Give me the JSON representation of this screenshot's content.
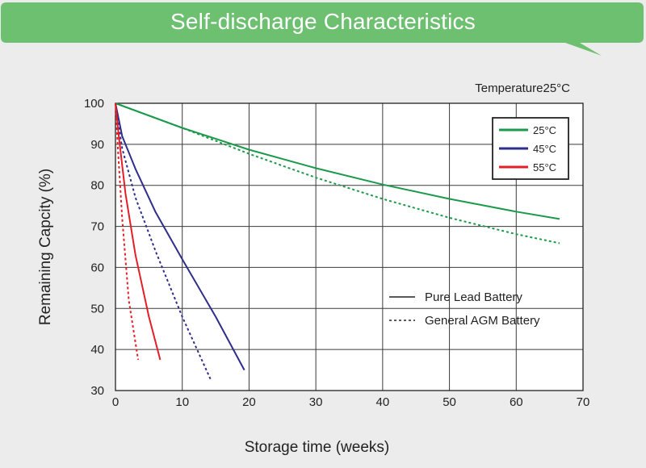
{
  "header": {
    "title": "Self-discharge Characteristics"
  },
  "chart_data": {
    "type": "line",
    "title": "Self-discharge Characteristics",
    "note": "Temperature25°C",
    "xlabel": "Storage time (weeks)",
    "ylabel": "Remaining Capcity (%)",
    "xlim": [
      0,
      70
    ],
    "ylim": [
      30,
      100
    ],
    "xticks": [
      0,
      10,
      20,
      30,
      40,
      50,
      60,
      70
    ],
    "yticks": [
      30,
      40,
      50,
      60,
      70,
      80,
      90,
      100
    ],
    "grid": true,
    "legend_placement": "top-right",
    "colors": {
      "25C": "#1a9a4a",
      "45C": "#2e2e8c",
      "55C": "#e41e26",
      "banner": "#6cc070"
    },
    "legend": [
      {
        "label": "25°C",
        "color": "#1a9a4a"
      },
      {
        "label": "45°C",
        "color": "#2e2e8c"
      },
      {
        "label": "55°C",
        "color": "#e41e26"
      }
    ],
    "battery_types": [
      {
        "label": "Pure Lead Battery",
        "style": "solid"
      },
      {
        "label": "General AGM Battery",
        "style": "dashed"
      }
    ],
    "series": [
      {
        "temperature": "25°C",
        "battery": "Pure Lead Battery",
        "color": "#1a9a4a",
        "style": "solid",
        "x": [
          0,
          10,
          20,
          30,
          40,
          50,
          60,
          66.5
        ],
        "y": [
          100,
          94,
          88.7,
          84.2,
          80.2,
          76.7,
          73.6,
          71.8
        ]
      },
      {
        "temperature": "25°C",
        "battery": "General AGM Battery",
        "color": "#1a9a4a",
        "style": "dashed",
        "x": [
          0,
          10,
          20,
          30,
          40,
          50,
          60,
          66.5
        ],
        "y": [
          100,
          94,
          87.7,
          81.9,
          76.7,
          72.1,
          68.1,
          65.9
        ]
      },
      {
        "temperature": "45°C",
        "battery": "Pure Lead Battery",
        "color": "#2e2e8c",
        "style": "solid",
        "x": [
          0,
          1,
          3,
          6,
          10,
          15,
          19.3
        ],
        "y": [
          100,
          92,
          84,
          73.5,
          62,
          48,
          35
        ]
      },
      {
        "temperature": "45°C",
        "battery": "General AGM Battery",
        "color": "#2e2e8c",
        "style": "dashed",
        "x": [
          0,
          1,
          3,
          6,
          10,
          14.3
        ],
        "y": [
          100,
          89,
          77,
          64,
          48,
          32.5
        ]
      },
      {
        "temperature": "55°C",
        "battery": "Pure Lead Battery",
        "color": "#e41e26",
        "style": "solid",
        "x": [
          0,
          0.5,
          1.5,
          3,
          5,
          6.7
        ],
        "y": [
          100,
          92,
          78,
          63,
          48,
          37.5
        ]
      },
      {
        "temperature": "55°C",
        "battery": "General AGM Battery",
        "color": "#e41e26",
        "style": "dashed",
        "x": [
          0,
          0.4,
          1,
          2,
          3.4
        ],
        "y": [
          100,
          88,
          72,
          52,
          37.5
        ]
      }
    ]
  }
}
